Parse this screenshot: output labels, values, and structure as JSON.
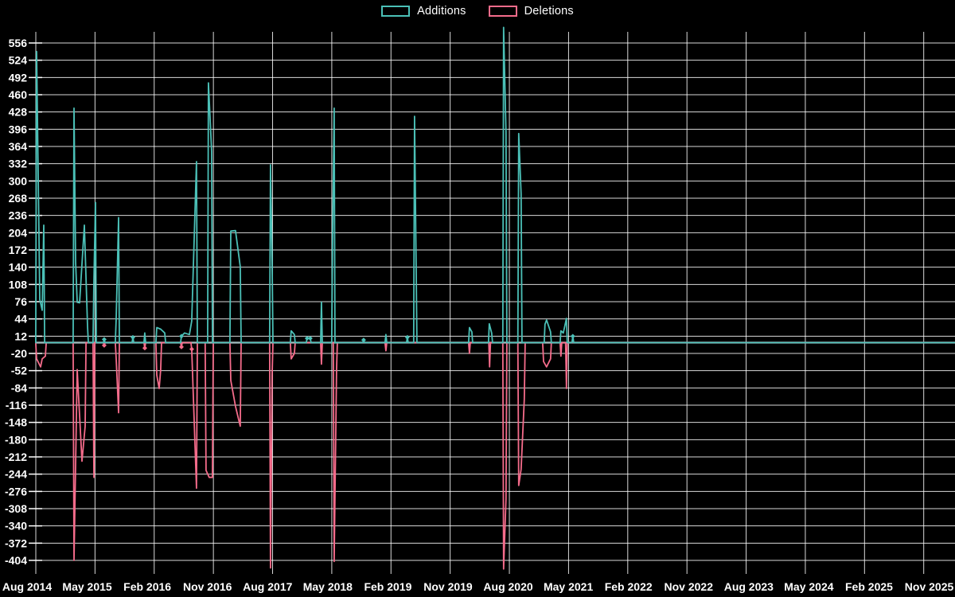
{
  "legend": {
    "items": [
      {
        "label": "Additions",
        "color": "#4BC0B7"
      },
      {
        "label": "Deletions",
        "color": "#F56C8B"
      }
    ]
  },
  "chart_data": {
    "type": "line",
    "title": "",
    "legend_position": "top-center",
    "grid": true,
    "background": "#000000",
    "grid_color": "#ffffff",
    "text_color": "#ffffff",
    "baseline": {
      "value": 0,
      "color": "#9FB9BB"
    },
    "x_axis": {
      "unit": "date",
      "interval_months": 9,
      "tick_labels": [
        "Aug 2014",
        "May 2015",
        "Feb 2016",
        "Nov 2016",
        "Aug 2017",
        "May 2018",
        "Feb 2019",
        "Nov 2019",
        "Aug 2020",
        "May 2021",
        "Feb 2022",
        "Nov 2022",
        "Aug 2023",
        "May 2024",
        "Feb 2025",
        "Nov 2025"
      ]
    },
    "y_axis": {
      "max": 556,
      "min": -404,
      "tick_step": 32,
      "tick_labels": [
        556,
        524,
        492,
        460,
        428,
        396,
        364,
        332,
        300,
        268,
        236,
        204,
        172,
        140,
        108,
        76,
        44,
        12,
        -20,
        -52,
        -84,
        -116,
        -148,
        -180,
        -212,
        -244,
        -276,
        -308,
        -340,
        -372,
        -404
      ]
    },
    "series": [
      {
        "name": "Additions",
        "color": "#4BC0B7",
        "x_unit": "months_since_Aug_2014",
        "points": [
          [
            0.12,
            540
          ],
          [
            0.6,
            80
          ],
          [
            0.97,
            60
          ],
          [
            1.21,
            218
          ],
          [
            5.81,
            435
          ],
          [
            6.05,
            150
          ],
          [
            6.29,
            75
          ],
          [
            6.65,
            74
          ],
          [
            7.38,
            218
          ],
          [
            7.86,
            30
          ],
          [
            8.83,
            115
          ],
          [
            9.07,
            260
          ],
          [
            10.4,
            6
          ],
          [
            12.22,
            45
          ],
          [
            12.58,
            232
          ],
          [
            14.76,
            10
          ],
          [
            16.57,
            18
          ],
          [
            18.39,
            28
          ],
          [
            18.99,
            25
          ],
          [
            19.6,
            18
          ],
          [
            22.14,
            12
          ],
          [
            22.62,
            18
          ],
          [
            23.35,
            15
          ],
          [
            23.71,
            40
          ],
          [
            24.43,
            336
          ],
          [
            26.25,
            482
          ],
          [
            26.73,
            355
          ],
          [
            29.64,
            207
          ],
          [
            30.36,
            208
          ],
          [
            31.09,
            141
          ],
          [
            35.68,
            330
          ],
          [
            35.93,
            150
          ],
          [
            38.83,
            22
          ],
          [
            39.31,
            15
          ],
          [
            41.25,
            8
          ],
          [
            41.73,
            8
          ],
          [
            43.43,
            75
          ],
          [
            45.12,
            190
          ],
          [
            45.36,
            435
          ],
          [
            49.84,
            5
          ],
          [
            53.23,
            15
          ],
          [
            56.49,
            10
          ],
          [
            57.58,
            420
          ],
          [
            57.82,
            143
          ],
          [
            65.93,
            28
          ],
          [
            66.29,
            20
          ],
          [
            68.95,
            35
          ],
          [
            69.31,
            18
          ],
          [
            71.13,
            585
          ],
          [
            71.49,
            390
          ],
          [
            73.42,
            388
          ],
          [
            73.79,
            276
          ],
          [
            77.42,
            34
          ],
          [
            77.66,
            42
          ],
          [
            78.26,
            20
          ],
          [
            79.84,
            22
          ],
          [
            80.2,
            18
          ],
          [
            80.68,
            45
          ],
          [
            81.65,
            12
          ]
        ]
      },
      {
        "name": "Deletions",
        "color": "#F56C8B",
        "x_unit": "months_since_Aug_2014",
        "points": [
          [
            0.12,
            -30
          ],
          [
            0.73,
            -45
          ],
          [
            0.97,
            -30
          ],
          [
            1.45,
            -25
          ],
          [
            5.81,
            -404
          ],
          [
            6.29,
            -50
          ],
          [
            7.02,
            -220
          ],
          [
            7.5,
            -155
          ],
          [
            8.83,
            -250
          ],
          [
            10.4,
            -5
          ],
          [
            12.22,
            -30
          ],
          [
            12.58,
            -130
          ],
          [
            16.57,
            -10
          ],
          [
            18.39,
            -60
          ],
          [
            18.75,
            -85
          ],
          [
            18.99,
            -50
          ],
          [
            22.14,
            -8
          ],
          [
            23.71,
            -12
          ],
          [
            24.43,
            -270
          ],
          [
            25.88,
            -237
          ],
          [
            26.37,
            -250
          ],
          [
            26.85,
            -250
          ],
          [
            29.64,
            -70
          ],
          [
            30.36,
            -118
          ],
          [
            31.09,
            -155
          ],
          [
            35.68,
            -418
          ],
          [
            35.93,
            -60
          ],
          [
            38.83,
            -30
          ],
          [
            39.31,
            -20
          ],
          [
            43.43,
            -40
          ],
          [
            45.36,
            -406
          ],
          [
            45.72,
            -50
          ],
          [
            53.23,
            -15
          ],
          [
            65.93,
            -20
          ],
          [
            69.0,
            -45
          ],
          [
            71.13,
            -420
          ],
          [
            71.49,
            -290
          ],
          [
            73.42,
            -265
          ],
          [
            73.79,
            -235
          ],
          [
            74.27,
            -105
          ],
          [
            77.2,
            -35
          ],
          [
            77.66,
            -45
          ],
          [
            78.26,
            -30
          ],
          [
            79.84,
            -25
          ],
          [
            80.68,
            -85
          ]
        ]
      }
    ]
  }
}
